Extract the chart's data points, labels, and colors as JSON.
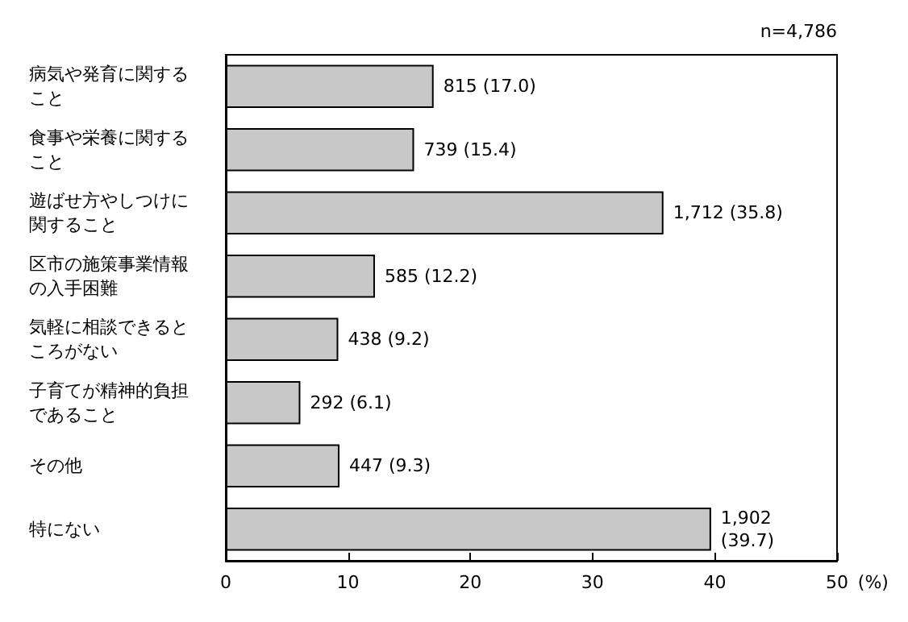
{
  "chart_data": {
    "type": "bar",
    "orientation": "horizontal",
    "xlabel": "(%)",
    "annotations": [
      "n=4,786"
    ],
    "categories": [
      "病気や発育に関すること",
      "食事や栄養に関すること",
      "遊ばせ方やしつけに関すること",
      "区市の施策事業情報の入手困難",
      "気軽に相談できるところがない",
      "子育てが精神的負担であること",
      "その他",
      "特にない"
    ],
    "values": [
      17.0,
      15.4,
      35.8,
      12.2,
      9.2,
      6.1,
      9.3,
      39.7
    ],
    "value_labels": [
      "815 (17.0)",
      "739 (15.4)",
      "1,712 (35.8)",
      "585 (12.2)",
      "438 (9.2)",
      "292 (6.1)",
      "447 (9.3)",
      "1,902\n(39.7)"
    ],
    "color": "#c8c8c8",
    "xlim": [
      0,
      50
    ],
    "xticks": [
      0,
      10,
      20,
      30,
      40,
      50
    ],
    "grid": false
  }
}
